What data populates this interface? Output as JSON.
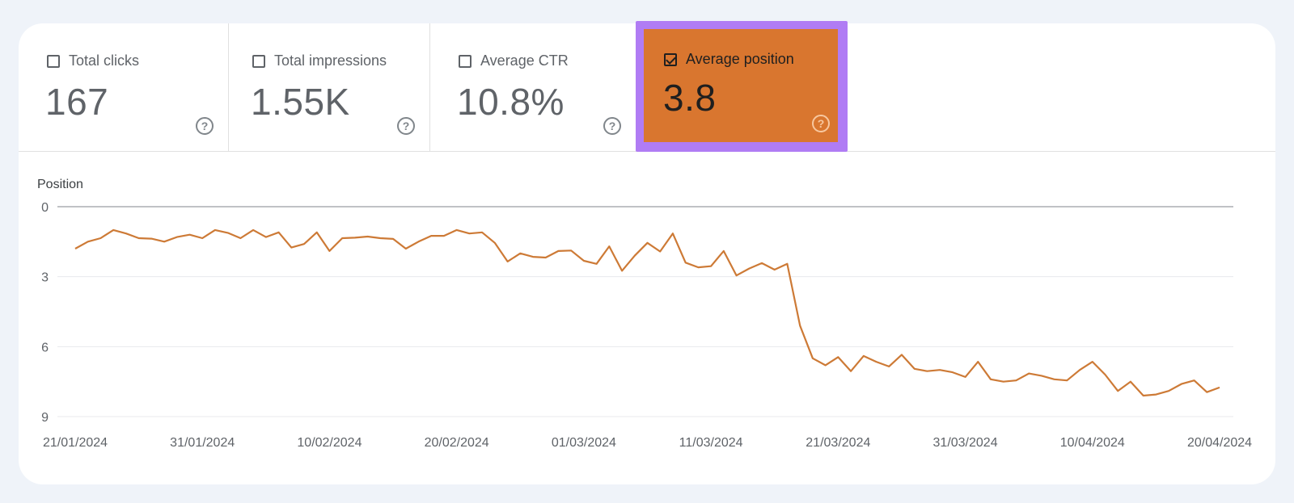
{
  "metrics": [
    {
      "label": "Total clicks",
      "value": "167",
      "checked": false
    },
    {
      "label": "Total impressions",
      "value": "1.55K",
      "checked": false
    },
    {
      "label": "Average CTR",
      "value": "10.8%",
      "checked": false
    },
    {
      "label": "Average position",
      "value": "3.8",
      "checked": true
    }
  ],
  "help_glyph": "?",
  "colors": {
    "accent": "#d9762f",
    "highlight_border": "#b07cf4",
    "line": "#cd7a36",
    "background": "#eff3f9"
  },
  "chart_data": {
    "type": "line",
    "ylabel": "Position",
    "y_inverted": true,
    "ylim": [
      0,
      9
    ],
    "yticks": [
      "0",
      "3",
      "6",
      "9"
    ],
    "xticks": [
      "21/01/2024",
      "31/01/2024",
      "10/02/2024",
      "20/02/2024",
      "01/03/2024",
      "11/03/2024",
      "21/03/2024",
      "31/03/2024",
      "10/04/2024",
      "20/04/2024"
    ],
    "grid": true,
    "series": [
      {
        "values": [
          1.8,
          1.5,
          1.35,
          1.0,
          1.15,
          1.35,
          1.37,
          1.5,
          1.3,
          1.2,
          1.35,
          1.0,
          1.12,
          1.35,
          1.0,
          1.3,
          1.1,
          1.75,
          1.6,
          1.1,
          1.9,
          1.35,
          1.33,
          1.28,
          1.35,
          1.38,
          1.8,
          1.5,
          1.25,
          1.25,
          1.0,
          1.15,
          1.1,
          1.55,
          2.35,
          2.0,
          2.15,
          2.18,
          1.9,
          1.88,
          2.32,
          2.45,
          1.7,
          2.75,
          2.1,
          1.55,
          1.92,
          1.15,
          2.4,
          2.6,
          2.55,
          1.9,
          2.95,
          2.65,
          2.42,
          2.7,
          2.45,
          5.1,
          6.5,
          6.8,
          6.45,
          7.05,
          6.4,
          6.65,
          6.85,
          6.35,
          6.95,
          7.05,
          7.0,
          7.1,
          7.3,
          6.65,
          7.4,
          7.5,
          7.45,
          7.15,
          7.25,
          7.4,
          7.45,
          7.0,
          6.65,
          7.2,
          7.9,
          7.5,
          8.1,
          8.05,
          7.9,
          7.6,
          7.45,
          7.95,
          7.75
        ]
      }
    ]
  }
}
